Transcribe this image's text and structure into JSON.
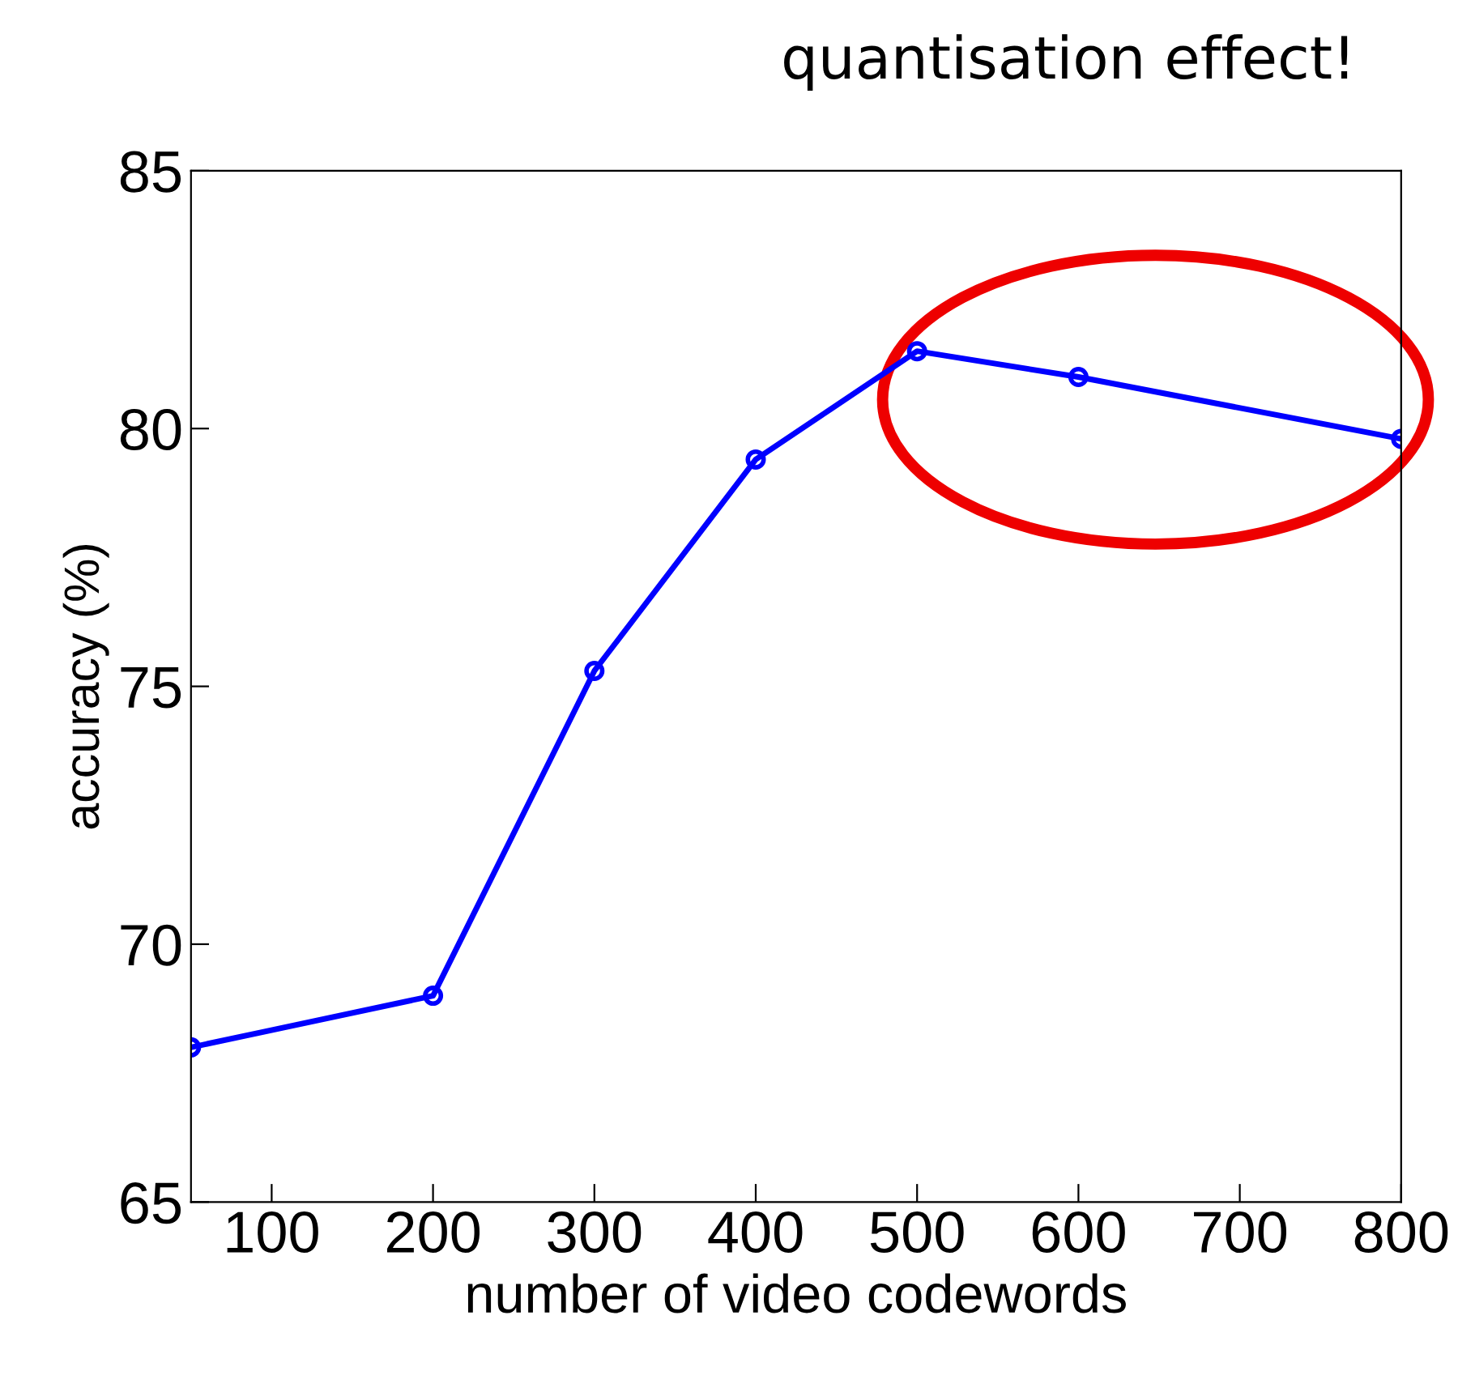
{
  "chart_data": {
    "type": "line",
    "xlabel": "number of video codewords",
    "ylabel": "accuracy (%)",
    "x": [
      50,
      200,
      300,
      400,
      500,
      600,
      800
    ],
    "series": [
      {
        "color": "#0000ff",
        "values": [
          68.0,
          69.0,
          75.3,
          79.4,
          81.5,
          81.0,
          79.8
        ]
      }
    ],
    "xlim": [
      50,
      800
    ],
    "xticks": [
      100,
      200,
      300,
      400,
      500,
      600,
      700,
      800
    ],
    "ylim": [
      65,
      85
    ],
    "yticks": [
      65,
      70,
      75,
      80,
      85
    ],
    "marker": "circle",
    "line_style": "solid",
    "grid": false,
    "legend": false,
    "annotations": [
      "quantisation effect!"
    ]
  }
}
